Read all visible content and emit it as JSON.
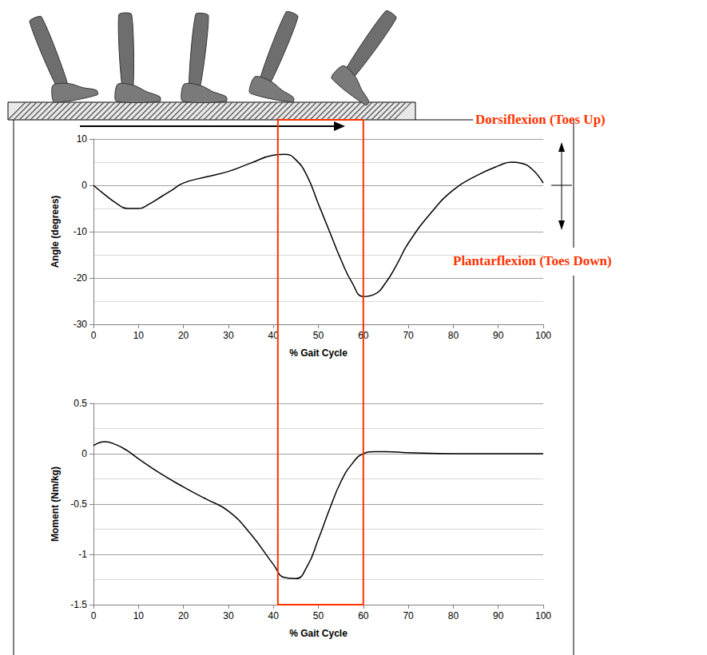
{
  "chart_data": [
    {
      "type": "line",
      "x": [
        0,
        2.5,
        5,
        7.5,
        10,
        12.5,
        15,
        17.5,
        20,
        25,
        30,
        35,
        40,
        42.5,
        45,
        47.5,
        50,
        52.5,
        55,
        57.5,
        60,
        62.5,
        65,
        67.5,
        70,
        75,
        80,
        85,
        90,
        93,
        95,
        97.5,
        100
      ],
      "values": [
        0,
        -2,
        -3.8,
        -5,
        -5,
        -4,
        -2.5,
        -1,
        0.5,
        1.8,
        3,
        4.8,
        6.5,
        6.7,
        5.5,
        2,
        -4,
        -10,
        -16,
        -21,
        -24,
        -23.5,
        -21,
        -17,
        -12.5,
        -6,
        -1,
        2,
        4.2,
        5,
        4.8,
        3.5,
        0.5
      ],
      "color": "#000000",
      "xlabel": "% Gait Cycle",
      "ylabel": "Angle (degrees)",
      "xlim": [
        0,
        100
      ],
      "xticks": [
        0,
        10,
        20,
        30,
        40,
        50,
        60,
        70,
        80,
        90,
        100
      ],
      "ylim": [
        -30,
        10
      ],
      "yticks": [
        -30,
        -20,
        -10,
        0,
        10
      ],
      "grid": true,
      "highlight_x": [
        41,
        60
      ],
      "annotations": [
        "Dorsiflexion (Toes Up)",
        "Plantarflexion (Toes Down)"
      ]
    },
    {
      "type": "line",
      "x": [
        0,
        2.5,
        5,
        7.5,
        10,
        15,
        20,
        25,
        30,
        35,
        40,
        42.5,
        45,
        47.5,
        50,
        52.5,
        55,
        57.5,
        60,
        62.5,
        65,
        70,
        80,
        90,
        100
      ],
      "values": [
        0.08,
        0.12,
        0.09,
        0.03,
        -0.05,
        -0.2,
        -0.33,
        -0.45,
        -0.57,
        -0.8,
        -1.1,
        -1.23,
        -1.24,
        -1.12,
        -0.85,
        -0.55,
        -0.28,
        -0.1,
        0,
        0.02,
        0.02,
        0.01,
        0,
        0,
        0
      ],
      "color": "#000000",
      "xlabel": "% Gait Cycle",
      "ylabel": "Moment (Nm/kg)",
      "xlim": [
        0,
        100
      ],
      "xticks": [
        0,
        10,
        20,
        30,
        40,
        50,
        60,
        70,
        80,
        90,
        100
      ],
      "ylim": [
        -1.5,
        0.5
      ],
      "yticks": [
        -1.5,
        -1,
        -0.5,
        0,
        0.5
      ],
      "grid": true,
      "highlight_x": [
        41,
        60
      ]
    }
  ]
}
